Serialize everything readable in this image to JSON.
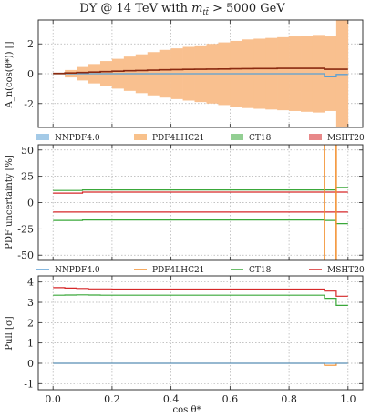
{
  "title": "DY @ 14 TeV with m_tt̄ > 5000 GeV",
  "title_parts": {
    "prefix": "DY @ 14 TeV with ",
    "m": "m",
    "sub": "tt̄",
    "suffix": " > 5000 GeV"
  },
  "xlabel": "cos θ*",
  "colors": {
    "NNPDF4.0": "#5a9fd4",
    "PDF4LHC21": "#f28e2b",
    "CT18": "#3aa83a",
    "MSHT20": "#d62728",
    "band_orange": "#f9c08f",
    "band_dark": "#8b2a10"
  },
  "chart_data": [
    {
      "type": "area",
      "panel": "top",
      "ylabel": "A_n(cos(θ*)) []",
      "xlim": [
        -0.05,
        1.05
      ],
      "ylim": [
        -3.6,
        3.6
      ],
      "yticks": [
        -2,
        0,
        2
      ],
      "grid": true,
      "x_edges": [
        0.0,
        0.04,
        0.08,
        0.12,
        0.16,
        0.2,
        0.24,
        0.28,
        0.32,
        0.36,
        0.4,
        0.44,
        0.48,
        0.52,
        0.56,
        0.6,
        0.64,
        0.68,
        0.72,
        0.76,
        0.8,
        0.84,
        0.88,
        0.92,
        0.96,
        1.0
      ],
      "band_upper": [
        0.05,
        0.25,
        0.45,
        0.65,
        0.85,
        1.0,
        1.15,
        1.3,
        1.45,
        1.6,
        1.7,
        1.8,
        1.9,
        2.0,
        2.1,
        2.2,
        2.3,
        2.35,
        2.4,
        2.45,
        2.5,
        2.55,
        2.6,
        2.5,
        3.6
      ],
      "band_lower": [
        -0.05,
        -0.25,
        -0.45,
        -0.65,
        -0.85,
        -1.0,
        -1.15,
        -1.3,
        -1.45,
        -1.6,
        -1.7,
        -1.8,
        -1.9,
        -2.0,
        -2.1,
        -2.2,
        -2.3,
        -2.35,
        -2.4,
        -2.45,
        -2.5,
        -2.55,
        -2.6,
        -2.5,
        -3.6
      ],
      "central": [
        0.02,
        0.05,
        0.08,
        0.11,
        0.14,
        0.17,
        0.2,
        0.22,
        0.24,
        0.26,
        0.28,
        0.29,
        0.3,
        0.31,
        0.32,
        0.33,
        0.34,
        0.35,
        0.35,
        0.36,
        0.36,
        0.36,
        0.36,
        0.3,
        0.3
      ],
      "nnpdf": [
        0.0,
        0.0,
        0.0,
        0.0,
        0.0,
        0.0,
        0.0,
        0.0,
        0.0,
        0.0,
        0.0,
        0.0,
        0.0,
        0.0,
        0.0,
        0.0,
        0.0,
        0.0,
        0.0,
        0.0,
        0.0,
        0.0,
        0.0,
        -0.2,
        -0.05
      ],
      "legend": [
        "NNPDF4.0",
        "PDF4LHC21",
        "CT18",
        "MSHT20"
      ]
    },
    {
      "type": "line",
      "panel": "middle",
      "ylabel": "PDF uncertainty [%]",
      "xlim": [
        -0.05,
        1.05
      ],
      "ylim": [
        -55,
        55
      ],
      "yticks": [
        -50,
        -25,
        0,
        25,
        50
      ],
      "grid": true,
      "x_edges": [
        0.0,
        0.1,
        0.2,
        0.3,
        0.4,
        0.5,
        0.6,
        0.7,
        0.8,
        0.9,
        0.92,
        0.96,
        1.0
      ],
      "series": [
        {
          "name": "CT18",
          "values": [
            11.5,
            12,
            12,
            12,
            12,
            12,
            12,
            12,
            12,
            12,
            12,
            14.5
          ]
        },
        {
          "name": "CT18",
          "values": [
            -17,
            -16.5,
            -16.5,
            -16.5,
            -16.5,
            -16.5,
            -16.5,
            -16.5,
            -16.5,
            -16.5,
            -17,
            -20
          ]
        },
        {
          "name": "MSHT20",
          "values": [
            9,
            10,
            10,
            10,
            10,
            10,
            10,
            10,
            10,
            10,
            10,
            10
          ]
        },
        {
          "name": "MSHT20",
          "values": [
            -9,
            -9,
            -9,
            -9,
            -9,
            -9,
            -9,
            -9,
            -9,
            -9,
            -9,
            -9
          ]
        }
      ],
      "vlines": [
        0.92,
        0.96
      ],
      "legend": [
        "NNPDF4.0",
        "PDF4LHC21",
        "CT18",
        "MSHT20"
      ]
    },
    {
      "type": "line",
      "panel": "bottom",
      "ylabel": "Pull [σ]",
      "xlim": [
        -0.05,
        1.05
      ],
      "ylim": [
        -1.3,
        4.3
      ],
      "yticks": [
        -1,
        0,
        1,
        2,
        3,
        4
      ],
      "xticks": [
        0.0,
        0.2,
        0.4,
        0.6,
        0.8,
        1.0
      ],
      "xtick_labels": [
        "0.0",
        "0.2",
        "0.4",
        "0.6",
        "0.8",
        "1.0"
      ],
      "grid": true,
      "x_edges": [
        0.0,
        0.04,
        0.08,
        0.12,
        0.16,
        0.2,
        0.24,
        0.28,
        0.32,
        0.36,
        0.4,
        0.44,
        0.48,
        0.52,
        0.56,
        0.6,
        0.64,
        0.68,
        0.72,
        0.76,
        0.8,
        0.84,
        0.88,
        0.92,
        0.96,
        1.0
      ],
      "series": [
        {
          "name": "MSHT20",
          "values": [
            3.72,
            3.7,
            3.68,
            3.66,
            3.66,
            3.65,
            3.65,
            3.65,
            3.65,
            3.65,
            3.65,
            3.65,
            3.65,
            3.65,
            3.65,
            3.65,
            3.65,
            3.65,
            3.65,
            3.65,
            3.65,
            3.65,
            3.65,
            3.55,
            3.3
          ]
        },
        {
          "name": "CT18",
          "values": [
            3.35,
            3.36,
            3.37,
            3.36,
            3.35,
            3.35,
            3.35,
            3.35,
            3.35,
            3.35,
            3.35,
            3.35,
            3.35,
            3.35,
            3.35,
            3.35,
            3.35,
            3.35,
            3.35,
            3.35,
            3.35,
            3.35,
            3.35,
            3.2,
            2.85
          ]
        },
        {
          "name": "PDF4LHC21",
          "values": [
            0.0,
            0.0,
            0.0,
            0.0,
            0.0,
            0.0,
            0.0,
            0.0,
            0.0,
            0.0,
            0.0,
            0.0,
            0.0,
            0.0,
            0.0,
            0.0,
            0.0,
            0.0,
            0.0,
            0.0,
            0.0,
            0.0,
            0.0,
            -0.1,
            0.0
          ]
        },
        {
          "name": "NNPDF4.0",
          "values": [
            0.0,
            0.0,
            0.0,
            0.0,
            0.0,
            0.0,
            0.0,
            0.0,
            0.0,
            0.0,
            0.0,
            0.0,
            0.0,
            0.0,
            0.0,
            0.0,
            0.0,
            0.0,
            0.0,
            0.0,
            0.0,
            0.0,
            0.0,
            0.0,
            0.0
          ]
        }
      ],
      "legend": [
        "NNPDF4.0",
        "PDF4LHC21",
        "CT18",
        "MSHT20"
      ]
    }
  ]
}
